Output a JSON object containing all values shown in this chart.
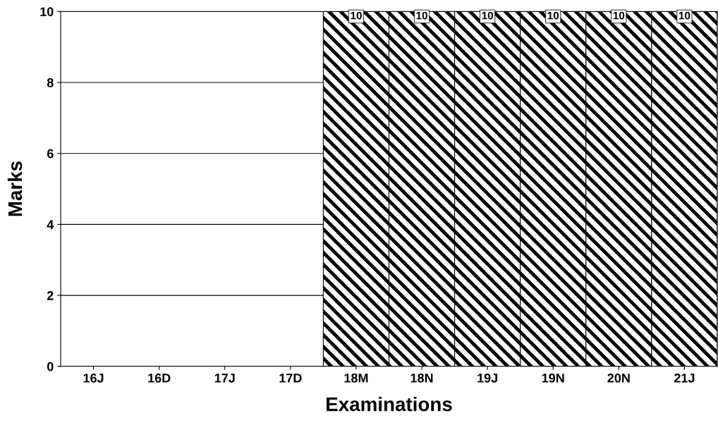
{
  "chart_data": {
    "type": "bar",
    "xlabel": "Examinations",
    "ylabel": "Marks",
    "categories": [
      "16J",
      "16D",
      "17J",
      "17D",
      "18M",
      "18N",
      "19J",
      "19N",
      "20N",
      "21J"
    ],
    "values": [
      null,
      null,
      null,
      null,
      10,
      10,
      10,
      10,
      10,
      10
    ],
    "value_labels": [
      null,
      null,
      null,
      null,
      "10",
      "10",
      "10",
      "10",
      "10",
      "10"
    ],
    "color": "#000000",
    "ylim": [
      0,
      10
    ],
    "yticks": [
      0,
      2,
      4,
      6,
      8,
      10
    ],
    "grid": "y",
    "legend": false
  }
}
